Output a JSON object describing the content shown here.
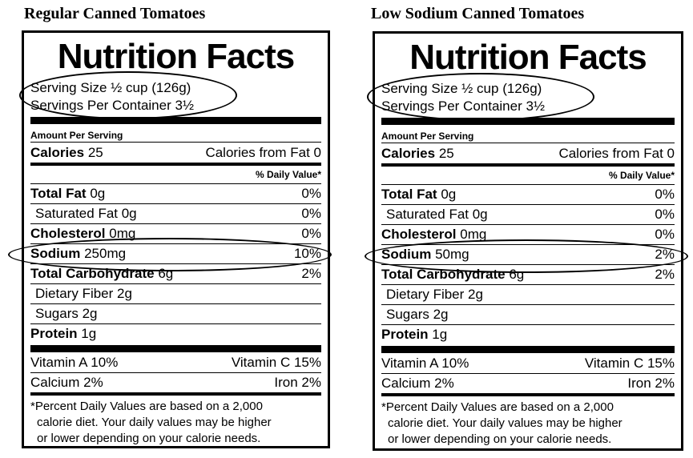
{
  "panels": [
    {
      "heading": "Regular Canned Tomatoes",
      "title": "Nutrition Facts",
      "serving_size": "Serving Size ½ cup (126g)",
      "servings_per_container": "Servings Per Container 3½",
      "amount_per_serving": "Amount Per Serving",
      "calories_label": "Calories",
      "calories_value": "25",
      "calories_from_fat": "Calories from Fat 0",
      "dv_header": "% Daily Value*",
      "total_fat_label": "Total Fat",
      "total_fat_value": "0g",
      "total_fat_dv": "0%",
      "sat_fat_label": "Saturated Fat 0g",
      "sat_fat_dv": "0%",
      "cholesterol_label": "Cholesterol",
      "cholesterol_value": "0mg",
      "cholesterol_dv": "0%",
      "sodium_label": "Sodium",
      "sodium_value": "250mg",
      "sodium_dv": "10%",
      "carb_label": "Total Carbohydrate",
      "carb_value": "6g",
      "carb_dv": "2%",
      "fiber_label": "Dietary Fiber 2g",
      "sugars_label": "Sugars 2g",
      "protein_label": "Protein",
      "protein_value": "1g",
      "vitamin_a": "Vitamin A 10%",
      "vitamin_c": "Vitamin C 15%",
      "calcium": "Calcium 2%",
      "iron": "Iron 2%",
      "footnote_1": "*Percent Daily Values are based on a 2,000",
      "footnote_2": "calorie diet. Your daily values may be higher",
      "footnote_3": "or lower depending on your calorie needs."
    },
    {
      "heading": "Low Sodium Canned Tomatoes",
      "title": "Nutrition Facts",
      "serving_size": "Serving Size ½ cup (126g)",
      "servings_per_container": "Servings Per Container 3½",
      "amount_per_serving": "Amount Per Serving",
      "calories_label": "Calories",
      "calories_value": "25",
      "calories_from_fat": "Calories from Fat 0",
      "dv_header": "% Daily Value*",
      "total_fat_label": "Total Fat",
      "total_fat_value": "0g",
      "total_fat_dv": "0%",
      "sat_fat_label": "Saturated Fat 0g",
      "sat_fat_dv": "0%",
      "cholesterol_label": "Cholesterol",
      "cholesterol_value": "0mg",
      "cholesterol_dv": "0%",
      "sodium_label": "Sodium",
      "sodium_value": "50mg",
      "sodium_dv": "2%",
      "carb_label": "Total Carbohydrate",
      "carb_value": "6g",
      "carb_dv": "2%",
      "fiber_label": "Dietary Fiber 2g",
      "sugars_label": "Sugars 2g",
      "protein_label": "Protein",
      "protein_value": "1g",
      "vitamin_a": "Vitamin A 10%",
      "vitamin_c": "Vitamin C 15%",
      "calcium": "Calcium 2%",
      "iron": "Iron 2%",
      "footnote_1": "*Percent Daily Values are based on a 2,000",
      "footnote_2": "calorie diet. Your daily values may be higher",
      "footnote_3": "or lower depending on your calorie needs."
    }
  ]
}
